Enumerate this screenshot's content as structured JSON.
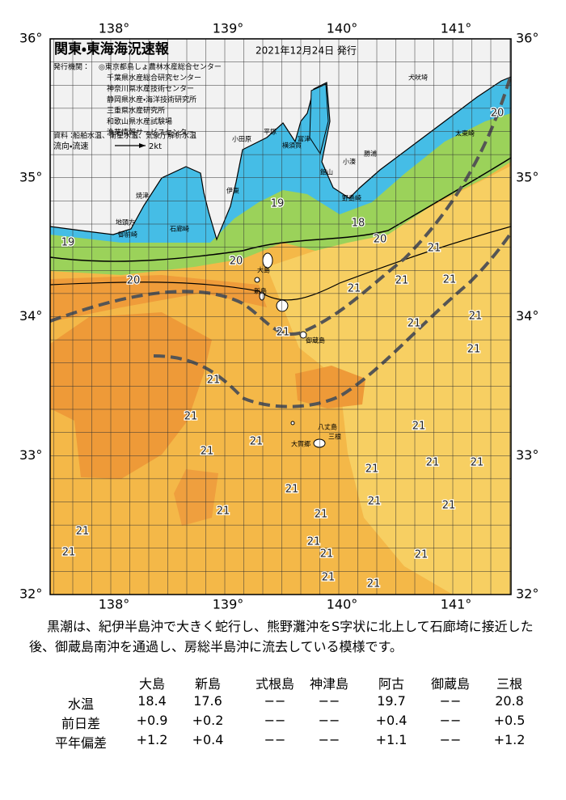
{
  "map": {
    "title": "関東・東海海況速報",
    "issue_date": "2021年12月24日 発行",
    "issuer_label": "発行機関：",
    "issuers": [
      "◎東京都島しょ農林水産総合センター",
      "千葉県水産総合研究センター",
      "神奈川県水産技術センター",
      "静岡県水産・海洋技術研究所",
      "三重県水産研究所",
      "和歌山県水産試験場",
      "漁業情報サービスセンター"
    ],
    "source_label": "資料：",
    "sources": "船舶水温、衛星水温、気象庁解析水温",
    "current_label": "流向・流速",
    "scale_label": "2kt",
    "longitude_labels": [
      "138°",
      "139°",
      "140°",
      "141°"
    ],
    "latitude_labels": [
      "36°",
      "35°",
      "34°",
      "33°",
      "32°"
    ],
    "place_names": [
      "犬吠埼",
      "太東崎",
      "勝浦",
      "小湊",
      "富津",
      "横須賀",
      "平塚",
      "小田原",
      "館山",
      "野島崎",
      "伊東",
      "焼津",
      "石廊崎",
      "地頭方",
      "御前崎",
      "大島",
      "新島",
      "御蔵島",
      "八丈島",
      "三根",
      "大賀郷"
    ],
    "isotherm_labels": [
      20,
      19,
      18,
      20,
      19,
      21,
      20,
      21,
      20,
      21,
      21,
      21,
      21,
      21,
      21,
      21,
      21,
      21,
      21,
      21,
      21,
      21,
      21,
      21,
      21,
      21,
      21,
      21,
      21,
      21,
      21,
      21,
      21,
      21,
      21
    ]
  },
  "description": "黒潮は、紀伊半島沖で大きく蛇行し、熊野灘沖をS字状に北上して石廊埼に接近した後、御蔵島南沖を通過し、房総半島沖に流去している模様です。",
  "table": {
    "columns": [
      "大島",
      "新島",
      "式根島",
      "神津島",
      "阿古",
      "御蔵島",
      "三根"
    ],
    "rows": [
      {
        "label": "水温",
        "cells": [
          "18.4",
          "17.6",
          "−−",
          "−−",
          "19.7",
          "−−",
          "20.8"
        ]
      },
      {
        "label": "前日差",
        "cells": [
          "+0.9",
          "+0.2",
          "−−",
          "−−",
          "+0.4",
          "−−",
          "+0.5"
        ]
      },
      {
        "label": "平年偏差",
        "cells": [
          "+1.2",
          "+0.4",
          "−−",
          "−−",
          "+1.1",
          "−−",
          "+1.2"
        ]
      }
    ]
  }
}
